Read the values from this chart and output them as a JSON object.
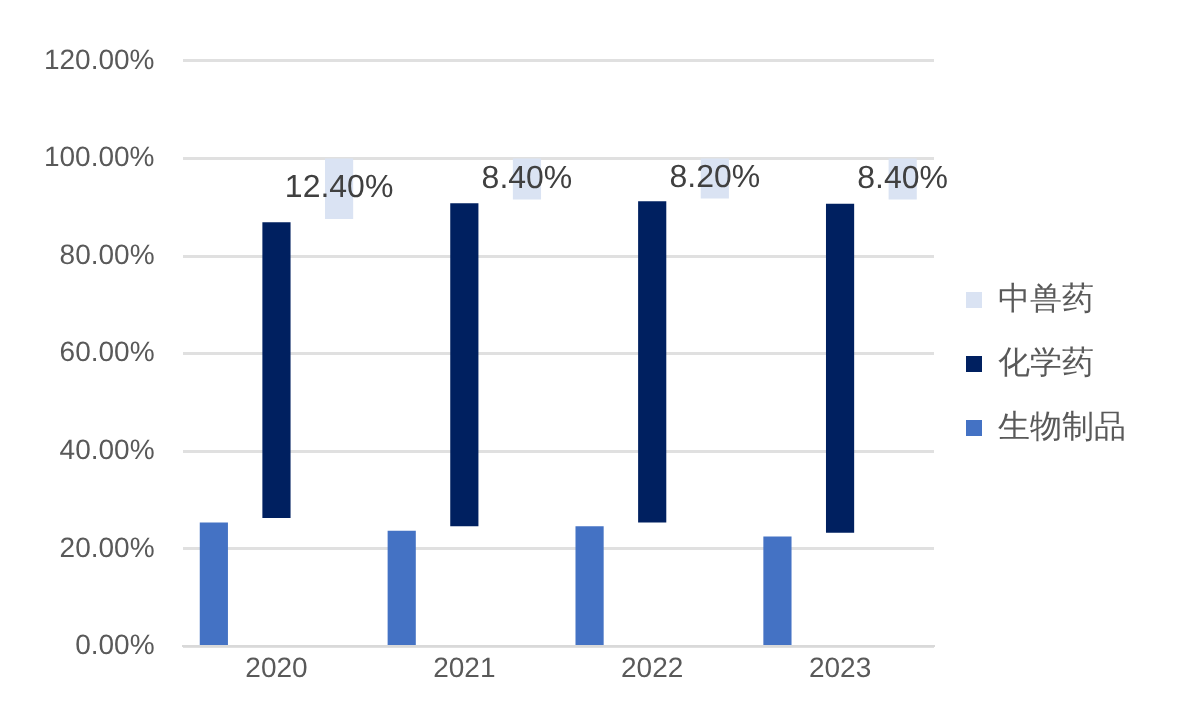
{
  "chart_data": {
    "type": "bar",
    "categories": [
      "2020",
      "2021",
      "2022",
      "2023"
    ],
    "series": [
      {
        "name": "生物制品",
        "color": "#4472c4",
        "values": [
          25.4,
          23.7,
          24.6,
          22.5
        ]
      },
      {
        "name": "化学药",
        "color": "#002060",
        "base": [
          26.3,
          24.6,
          25.4,
          23.3
        ],
        "values": [
          60.6,
          66.2,
          65.8,
          67.4
        ]
      },
      {
        "name": "中兽药",
        "color": "#dae3f3",
        "base": [
          87.6,
          91.6,
          91.8,
          91.6
        ],
        "values": [
          12.4,
          8.4,
          8.2,
          8.4
        ],
        "value_labels": [
          "12.40%",
          "8.40%",
          "8.20%",
          "8.40%"
        ]
      }
    ],
    "ylim": [
      0,
      120
    ],
    "yticks": [
      {
        "value": 0,
        "label": "0.00%"
      },
      {
        "value": 20,
        "label": "20.00%"
      },
      {
        "value": 40,
        "label": "40.00%"
      },
      {
        "value": 60,
        "label": "60.00%"
      },
      {
        "value": 80,
        "label": "80.00%"
      },
      {
        "value": 100,
        "label": "100.00%"
      },
      {
        "value": 120,
        "label": "120.00%"
      }
    ],
    "grid": "y",
    "legend": "right"
  }
}
